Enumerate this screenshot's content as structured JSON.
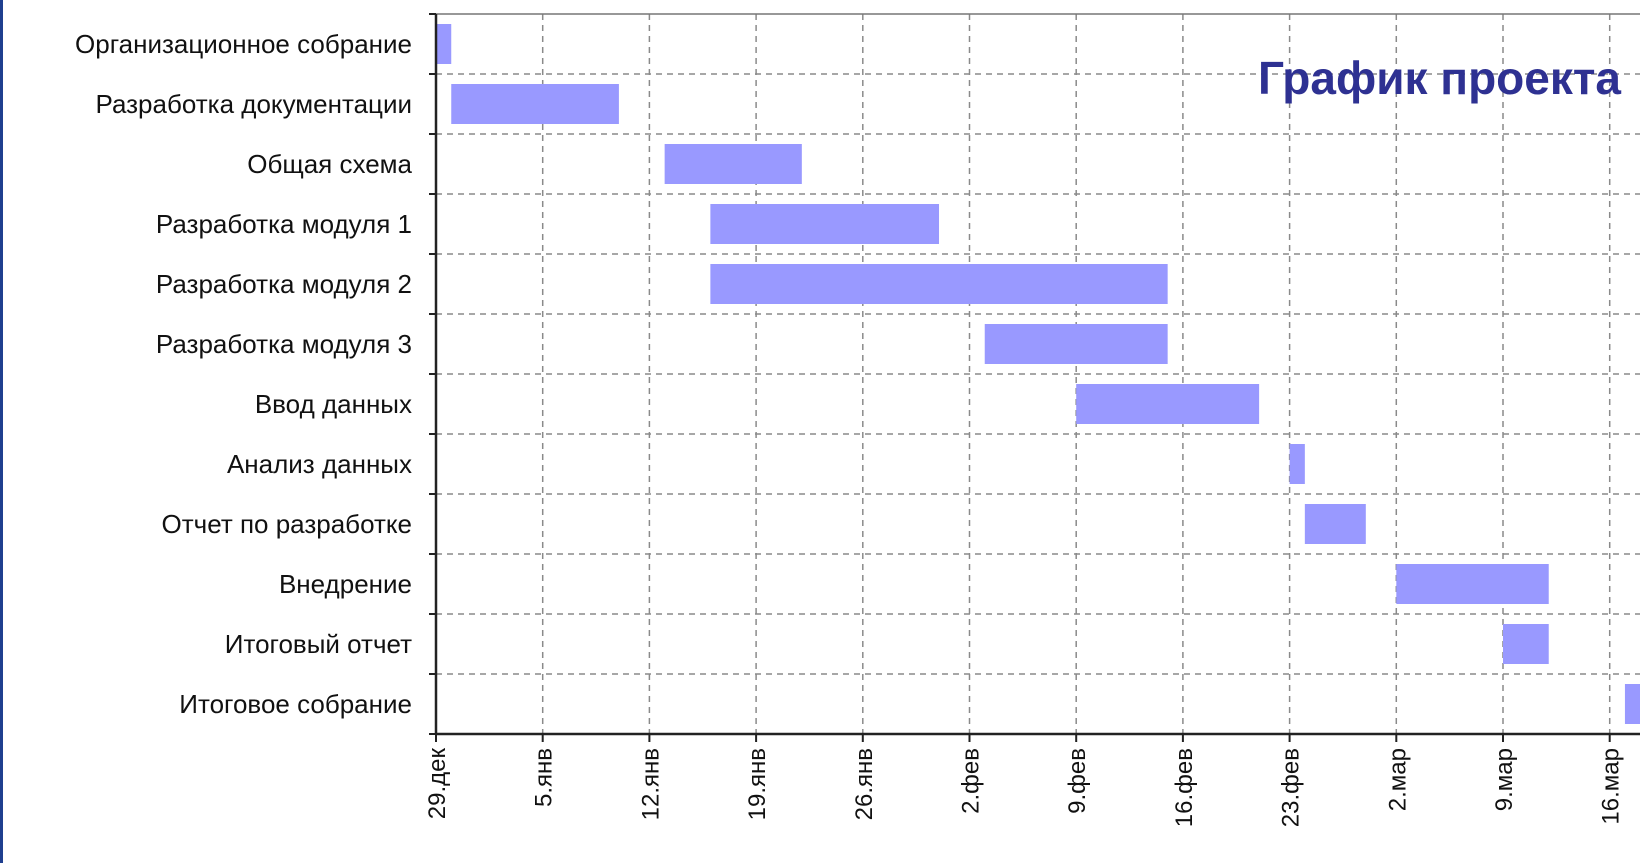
{
  "chart_data": {
    "type": "bar",
    "orientation": "horizontal-gantt",
    "title": "График проекта",
    "title_color": "#2e3192",
    "bar_color": "#9999ff",
    "grid": true,
    "grid_style": "dashed",
    "x_axis": {
      "start": "29.12",
      "tick_labels": [
        "29.дек",
        "5.янв",
        "12.янв",
        "19.янв",
        "26.янв",
        "2.фев",
        "9.фев",
        "16.фев",
        "23.фев",
        "2.мар",
        "9.мар",
        "16.мар"
      ],
      "tick_interval_days": 7
    },
    "tasks": [
      {
        "name": "Организационное собрание",
        "start": "29.12",
        "end": "30.12"
      },
      {
        "name": "Разработка документации",
        "start": "30.12",
        "end": "10.01"
      },
      {
        "name": "Общая схема",
        "start": "13.01",
        "end": "22.01"
      },
      {
        "name": "Разработка модуля 1",
        "start": "16.01",
        "end": "31.01"
      },
      {
        "name": "Разработка модуля 2",
        "start": "16.01",
        "end": "15.02"
      },
      {
        "name": "Разработка модуля 3",
        "start": "03.02",
        "end": "15.02"
      },
      {
        "name": "Ввод данных",
        "start": "09.02",
        "end": "21.02"
      },
      {
        "name": "Анализ данных",
        "start": "23.02",
        "end": "24.02"
      },
      {
        "name": "Отчет по разработке",
        "start": "24.02",
        "end": "28.02"
      },
      {
        "name": "Внедрение",
        "start": "02.03",
        "end": "12.03"
      },
      {
        "name": "Итоговый отчет",
        "start": "09.03",
        "end": "12.03"
      },
      {
        "name": "Итоговое собрание",
        "start": "17.03",
        "end": "18.03"
      }
    ]
  }
}
